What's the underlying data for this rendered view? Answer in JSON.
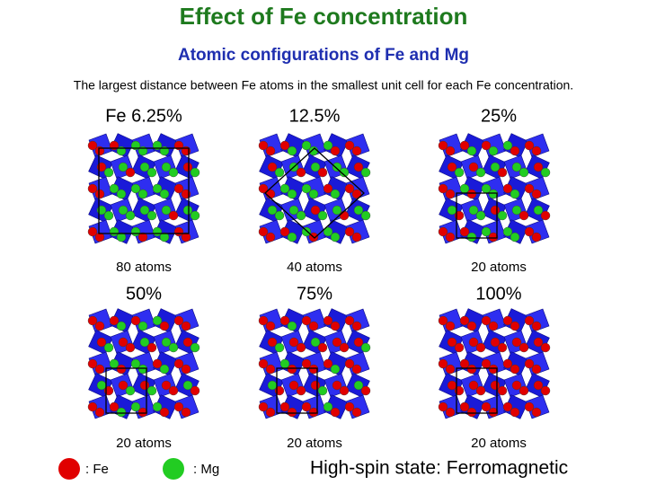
{
  "title": "Effect of Fe concentration",
  "subtitle": "Atomic configurations of Fe and Mg",
  "caption": "The largest distance between Fe atoms in the smallest unit cell for each Fe concentration.",
  "panels": [
    {
      "label": "Fe 6.25%",
      "atoms": "80 atoms"
    },
    {
      "label": "12.5%",
      "atoms": "40 atoms"
    },
    {
      "label": "25%",
      "atoms": "20 atoms"
    },
    {
      "label": "50%",
      "atoms": "20 atoms"
    },
    {
      "label": "75%",
      "atoms": "20 atoms"
    },
    {
      "label": "100%",
      "atoms": "20 atoms"
    }
  ],
  "legend": [
    ": Fe",
    ": Mg"
  ],
  "note": "High-spin state: Ferromagnetic"
}
